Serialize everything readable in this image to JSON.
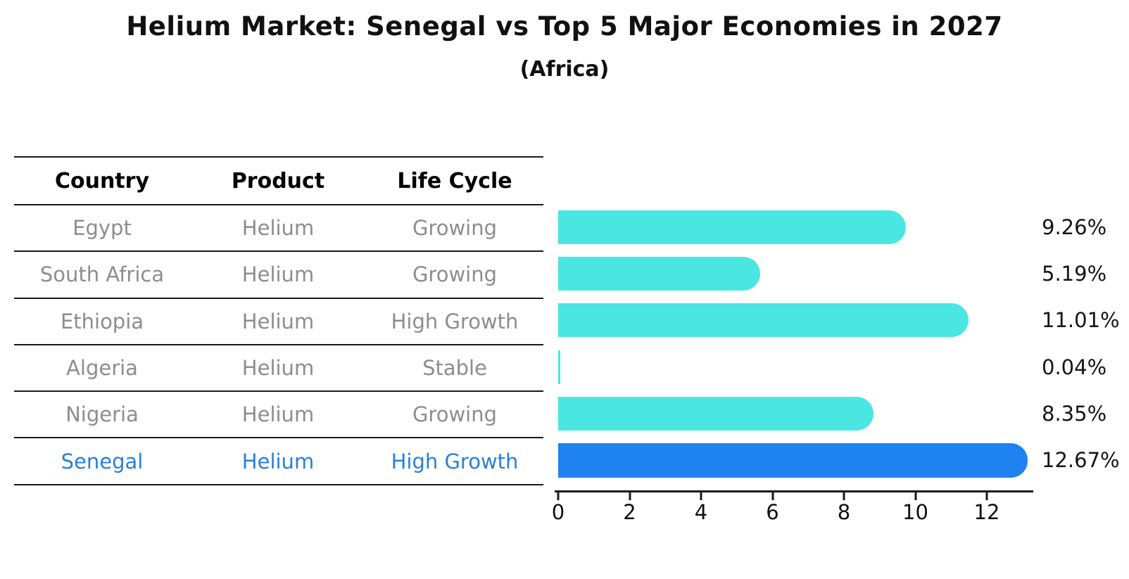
{
  "header": {
    "title": "Helium Market: Senegal vs Top 5 Major Economies in 2027",
    "subtitle": "(Africa)"
  },
  "table": {
    "columns": [
      "Country",
      "Product",
      "Life Cycle"
    ],
    "rows": [
      {
        "country": "Egypt",
        "product": "Helium",
        "life_cycle": "Growing",
        "highlight": false
      },
      {
        "country": "South Africa",
        "product": "Helium",
        "life_cycle": "Growing",
        "highlight": false
      },
      {
        "country": "Ethiopia",
        "product": "Helium",
        "life_cycle": "High Growth",
        "highlight": false
      },
      {
        "country": "Algeria",
        "product": "Helium",
        "life_cycle": "Stable",
        "highlight": false
      },
      {
        "country": "Nigeria",
        "product": "Helium",
        "life_cycle": "Growing",
        "highlight": false
      },
      {
        "country": "Senegal",
        "product": "Helium",
        "life_cycle": "High Growth",
        "highlight": true
      }
    ]
  },
  "chart_data": {
    "type": "bar",
    "orientation": "horizontal",
    "title": "Helium Market: Senegal vs Top 5 Major Economies in 2027",
    "subtitle": "(Africa)",
    "categories": [
      "Egypt",
      "South Africa",
      "Ethiopia",
      "Algeria",
      "Nigeria",
      "Senegal"
    ],
    "values": [
      9.26,
      5.19,
      11.01,
      0.04,
      8.35,
      12.67
    ],
    "value_labels": [
      "9.26%",
      "5.19%",
      "11.01%",
      "0.04%",
      "8.35%",
      "12.67%"
    ],
    "xticks": [
      0,
      2,
      4,
      6,
      8,
      10,
      12
    ],
    "xlim": [
      0,
      13.3
    ],
    "grid": false,
    "legend": "none",
    "bar_color": "#4AE7E2",
    "highlight_color": "#1E82F0",
    "highlight_index": 5,
    "highlight_text_color": "#2980d9"
  }
}
